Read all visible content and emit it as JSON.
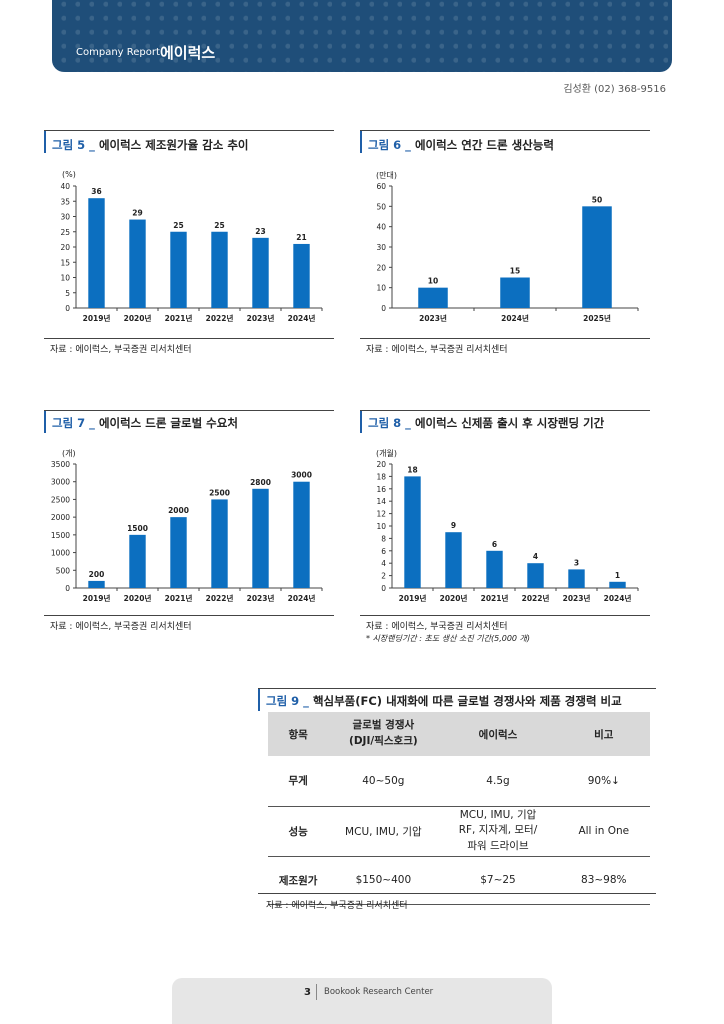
{
  "header": {
    "company_report": "Company Report",
    "company_name": "에이럭스"
  },
  "analyst": "김성환 (02) 368-9516",
  "figures": [
    {
      "num": "그림 5 _",
      "title": "에이럭스 제조원가율 감소 추이",
      "source": "자료 : 에이럭스, 부국증권 리서치센터",
      "chart_data": {
        "type": "bar",
        "unit": "(%)",
        "categories": [
          "2019년",
          "2020년",
          "2021년",
          "2022년",
          "2023년",
          "2024년"
        ],
        "values": [
          36,
          29,
          25,
          25,
          23,
          21
        ],
        "ylim": [
          0,
          40
        ],
        "yticks": [
          0,
          5,
          10,
          15,
          20,
          25,
          30,
          35,
          40
        ],
        "color": "#0c6fc0"
      }
    },
    {
      "num": "그림 6 _",
      "title": "에이럭스 연간 드론 생산능력",
      "source": "자료 : 에이럭스, 부국증권 리서치센터",
      "chart_data": {
        "type": "bar",
        "unit": "(만대)",
        "categories": [
          "2023년",
          "2024년",
          "2025년"
        ],
        "values": [
          10,
          15,
          50
        ],
        "ylim": [
          0,
          60
        ],
        "yticks": [
          0,
          10,
          20,
          30,
          40,
          50,
          60
        ],
        "color": "#0c6fc0"
      }
    },
    {
      "num": "그림 7 _",
      "title": "에이럭스 드론 글로벌 수요처",
      "source": "자료 : 에이럭스, 부국증권 리서치센터",
      "chart_data": {
        "type": "bar",
        "unit": "(개)",
        "categories": [
          "2019년",
          "2020년",
          "2021년",
          "2022년",
          "2023년",
          "2024년"
        ],
        "values": [
          200,
          1500,
          2000,
          2500,
          2800,
          3000
        ],
        "ylim": [
          0,
          3500
        ],
        "yticks": [
          0,
          500,
          1000,
          1500,
          2000,
          2500,
          3000,
          3500
        ],
        "color": "#0c6fc0"
      }
    },
    {
      "num": "그림 8 _",
      "title": "에이럭스 신제품 출시 후 시장랜딩 기간",
      "source": "자료 : 에이럭스, 부국증권 리서치센터",
      "note": "* 시장랜딩기간 : 초도 생산 소진 기간(5,000 개)",
      "chart_data": {
        "type": "bar",
        "unit": "(개월)",
        "categories": [
          "2019년",
          "2020년",
          "2021년",
          "2022년",
          "2023년",
          "2024년"
        ],
        "values": [
          18,
          9,
          6,
          4,
          3,
          1
        ],
        "ylim": [
          0,
          20
        ],
        "yticks": [
          0,
          2,
          4,
          6,
          8,
          10,
          12,
          14,
          16,
          18,
          20
        ],
        "color": "#0c6fc0"
      }
    }
  ],
  "table": {
    "num": "그림 9 _",
    "title": "핵심부품(FC) 내재화에 따른 글로벌 경쟁사와 제품 경쟁력 비교",
    "headers": [
      "항목",
      "글로벌 경쟁사\n(DJI/픽스호크)",
      "에이럭스",
      "비고"
    ],
    "rows": [
      [
        "무게",
        "40~50g",
        "4.5g",
        "90%↓"
      ],
      [
        "성능",
        "MCU, IMU, 기압",
        "MCU, IMU, 기압\nRF, 지자계, 모터/\n파워 드라이브",
        "All in One"
      ],
      [
        "제조원가",
        "$150~400",
        "$7~25",
        "83~98%"
      ]
    ],
    "source": "자료 : 에이럭스, 부국증권 리서치센터"
  },
  "footer": {
    "page": "3",
    "research_center": "Bookook Research Center"
  }
}
